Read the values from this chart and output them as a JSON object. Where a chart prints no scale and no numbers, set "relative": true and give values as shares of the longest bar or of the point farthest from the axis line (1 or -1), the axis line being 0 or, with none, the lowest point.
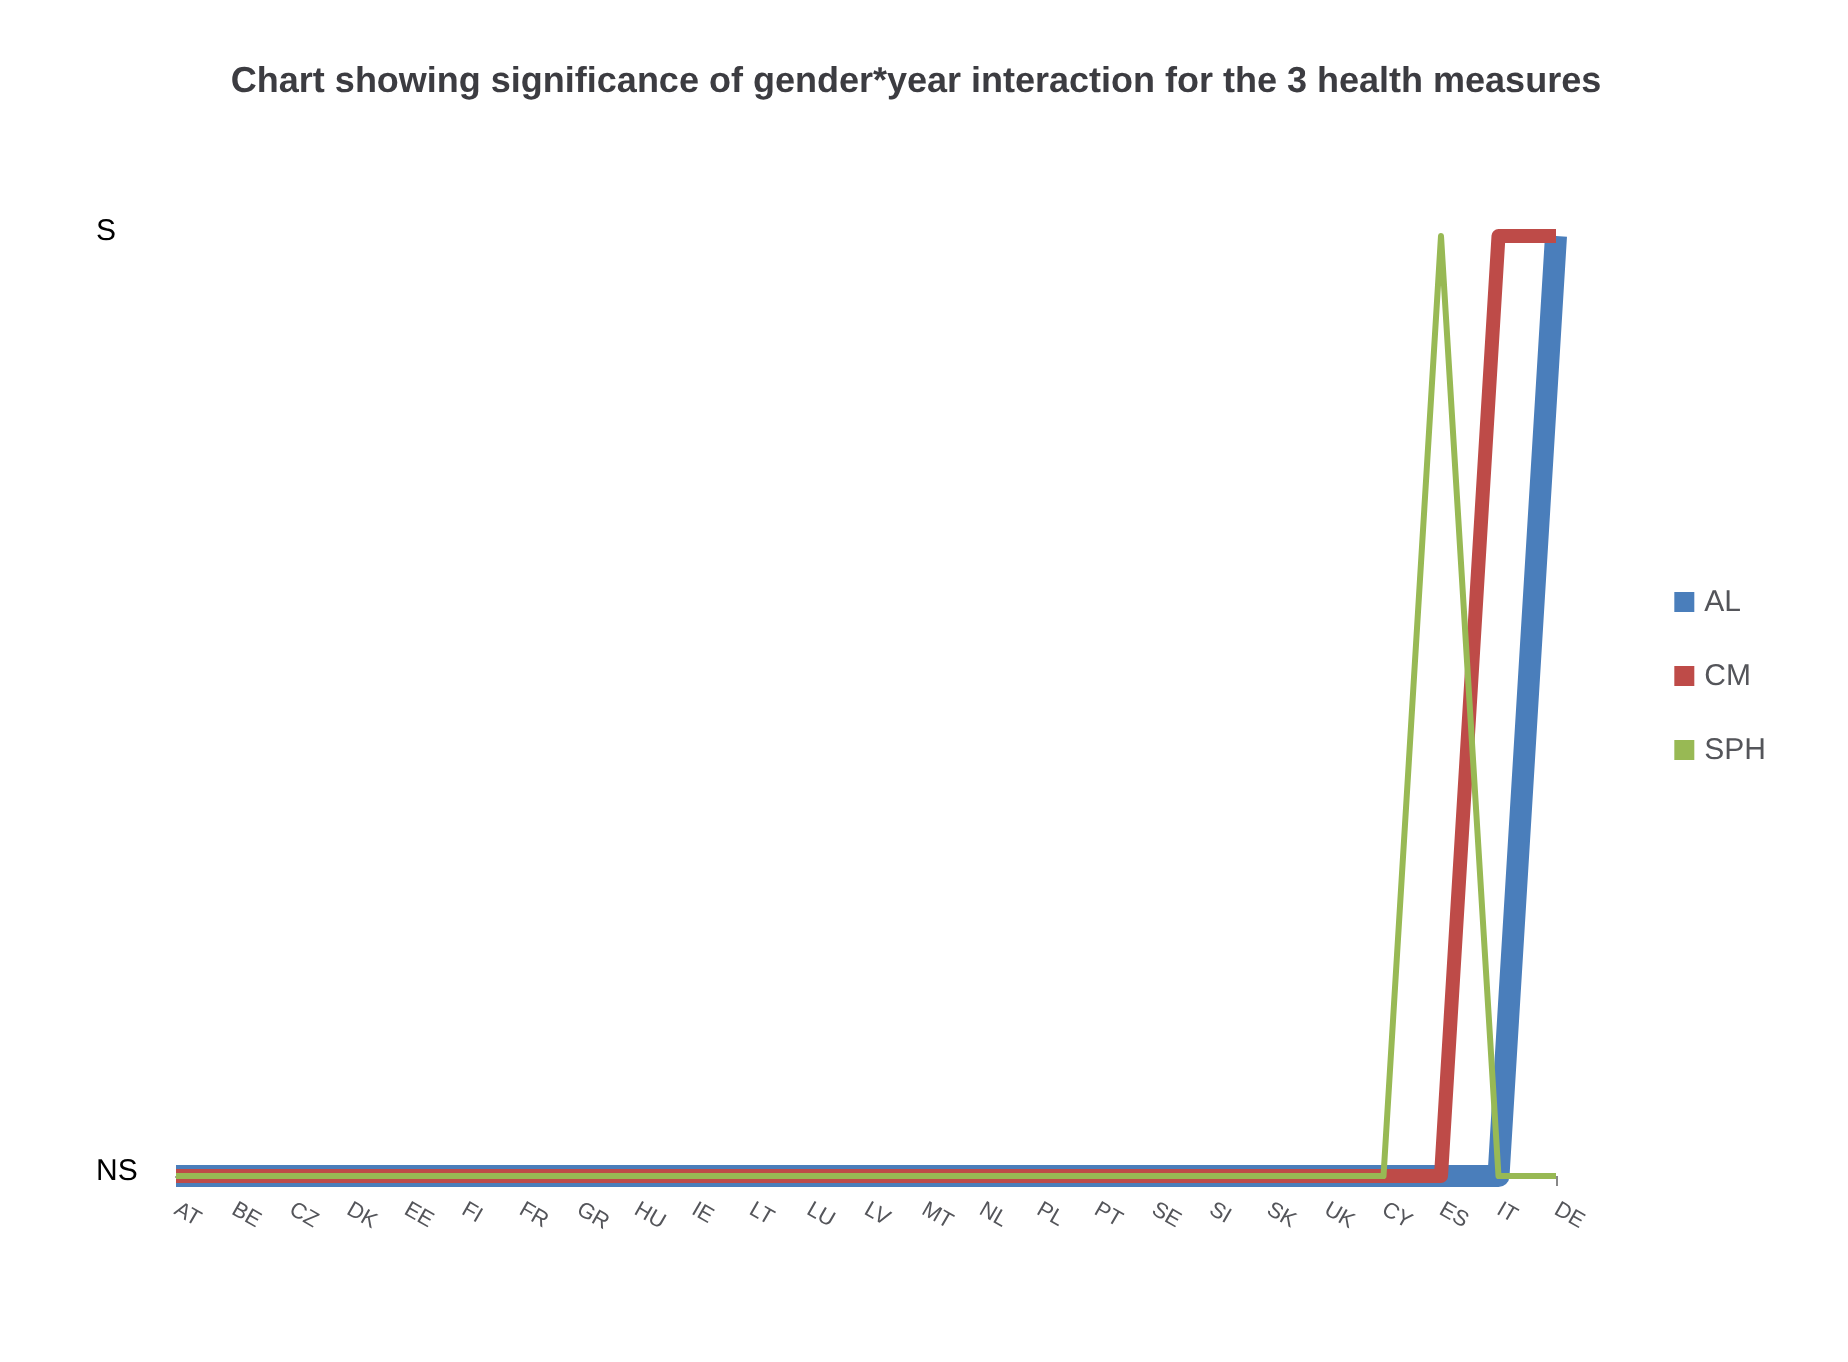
{
  "chart_data": {
    "type": "line",
    "title": "Chart showing significance of gender*year interaction for the 3 health measures",
    "categories": [
      "AT",
      "BE",
      "CZ",
      "DK",
      "EE",
      "FI",
      "FR",
      "GR",
      "HU",
      "IE",
      "LT",
      "LU",
      "LV",
      "MT",
      "NL",
      "PL",
      "PT",
      "SE",
      "SI",
      "SK",
      "UK",
      "CY",
      "ES",
      "IT",
      "DE"
    ],
    "series": [
      {
        "name": "AL",
        "color": "#4a7ebb",
        "values": [
          0,
          0,
          0,
          0,
          0,
          0,
          0,
          0,
          0,
          0,
          0,
          0,
          0,
          0,
          0,
          0,
          0,
          0,
          0,
          0,
          0,
          0,
          0,
          0,
          1
        ]
      },
      {
        "name": "CM",
        "color": "#be4b48",
        "values": [
          0,
          0,
          0,
          0,
          0,
          0,
          0,
          0,
          0,
          0,
          0,
          0,
          0,
          0,
          0,
          0,
          0,
          0,
          0,
          0,
          0,
          0,
          0,
          1,
          1
        ]
      },
      {
        "name": "SPH",
        "color": "#98b954",
        "values": [
          0,
          0,
          0,
          0,
          0,
          0,
          0,
          0,
          0,
          0,
          0,
          0,
          0,
          0,
          0,
          0,
          0,
          0,
          0,
          0,
          0,
          0,
          1,
          0,
          0
        ]
      }
    ],
    "relative": true,
    "annotations": [
      "S",
      "NS"
    ],
    "grid": false,
    "legend": "right",
    "marker": "none",
    "line_style": "solid"
  }
}
